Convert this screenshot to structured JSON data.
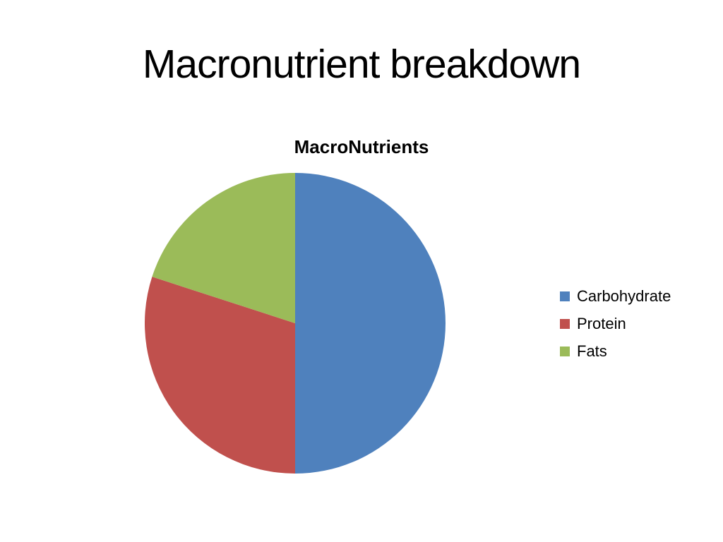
{
  "slide": {
    "title": "Macronutrient breakdown",
    "background_color": "#ffffff",
    "title_color": "#000000"
  },
  "chart_data": {
    "type": "pie",
    "title": "MacroNutrients",
    "categories": [
      "Carbohydrate",
      "Protein",
      "Fats"
    ],
    "values": [
      50,
      30,
      20
    ],
    "unit": "percent",
    "colors": [
      "#4F81BD",
      "#C0504D",
      "#9BBB59"
    ],
    "legend_position": "right",
    "start_angle": 0,
    "direction": "clockwise"
  }
}
